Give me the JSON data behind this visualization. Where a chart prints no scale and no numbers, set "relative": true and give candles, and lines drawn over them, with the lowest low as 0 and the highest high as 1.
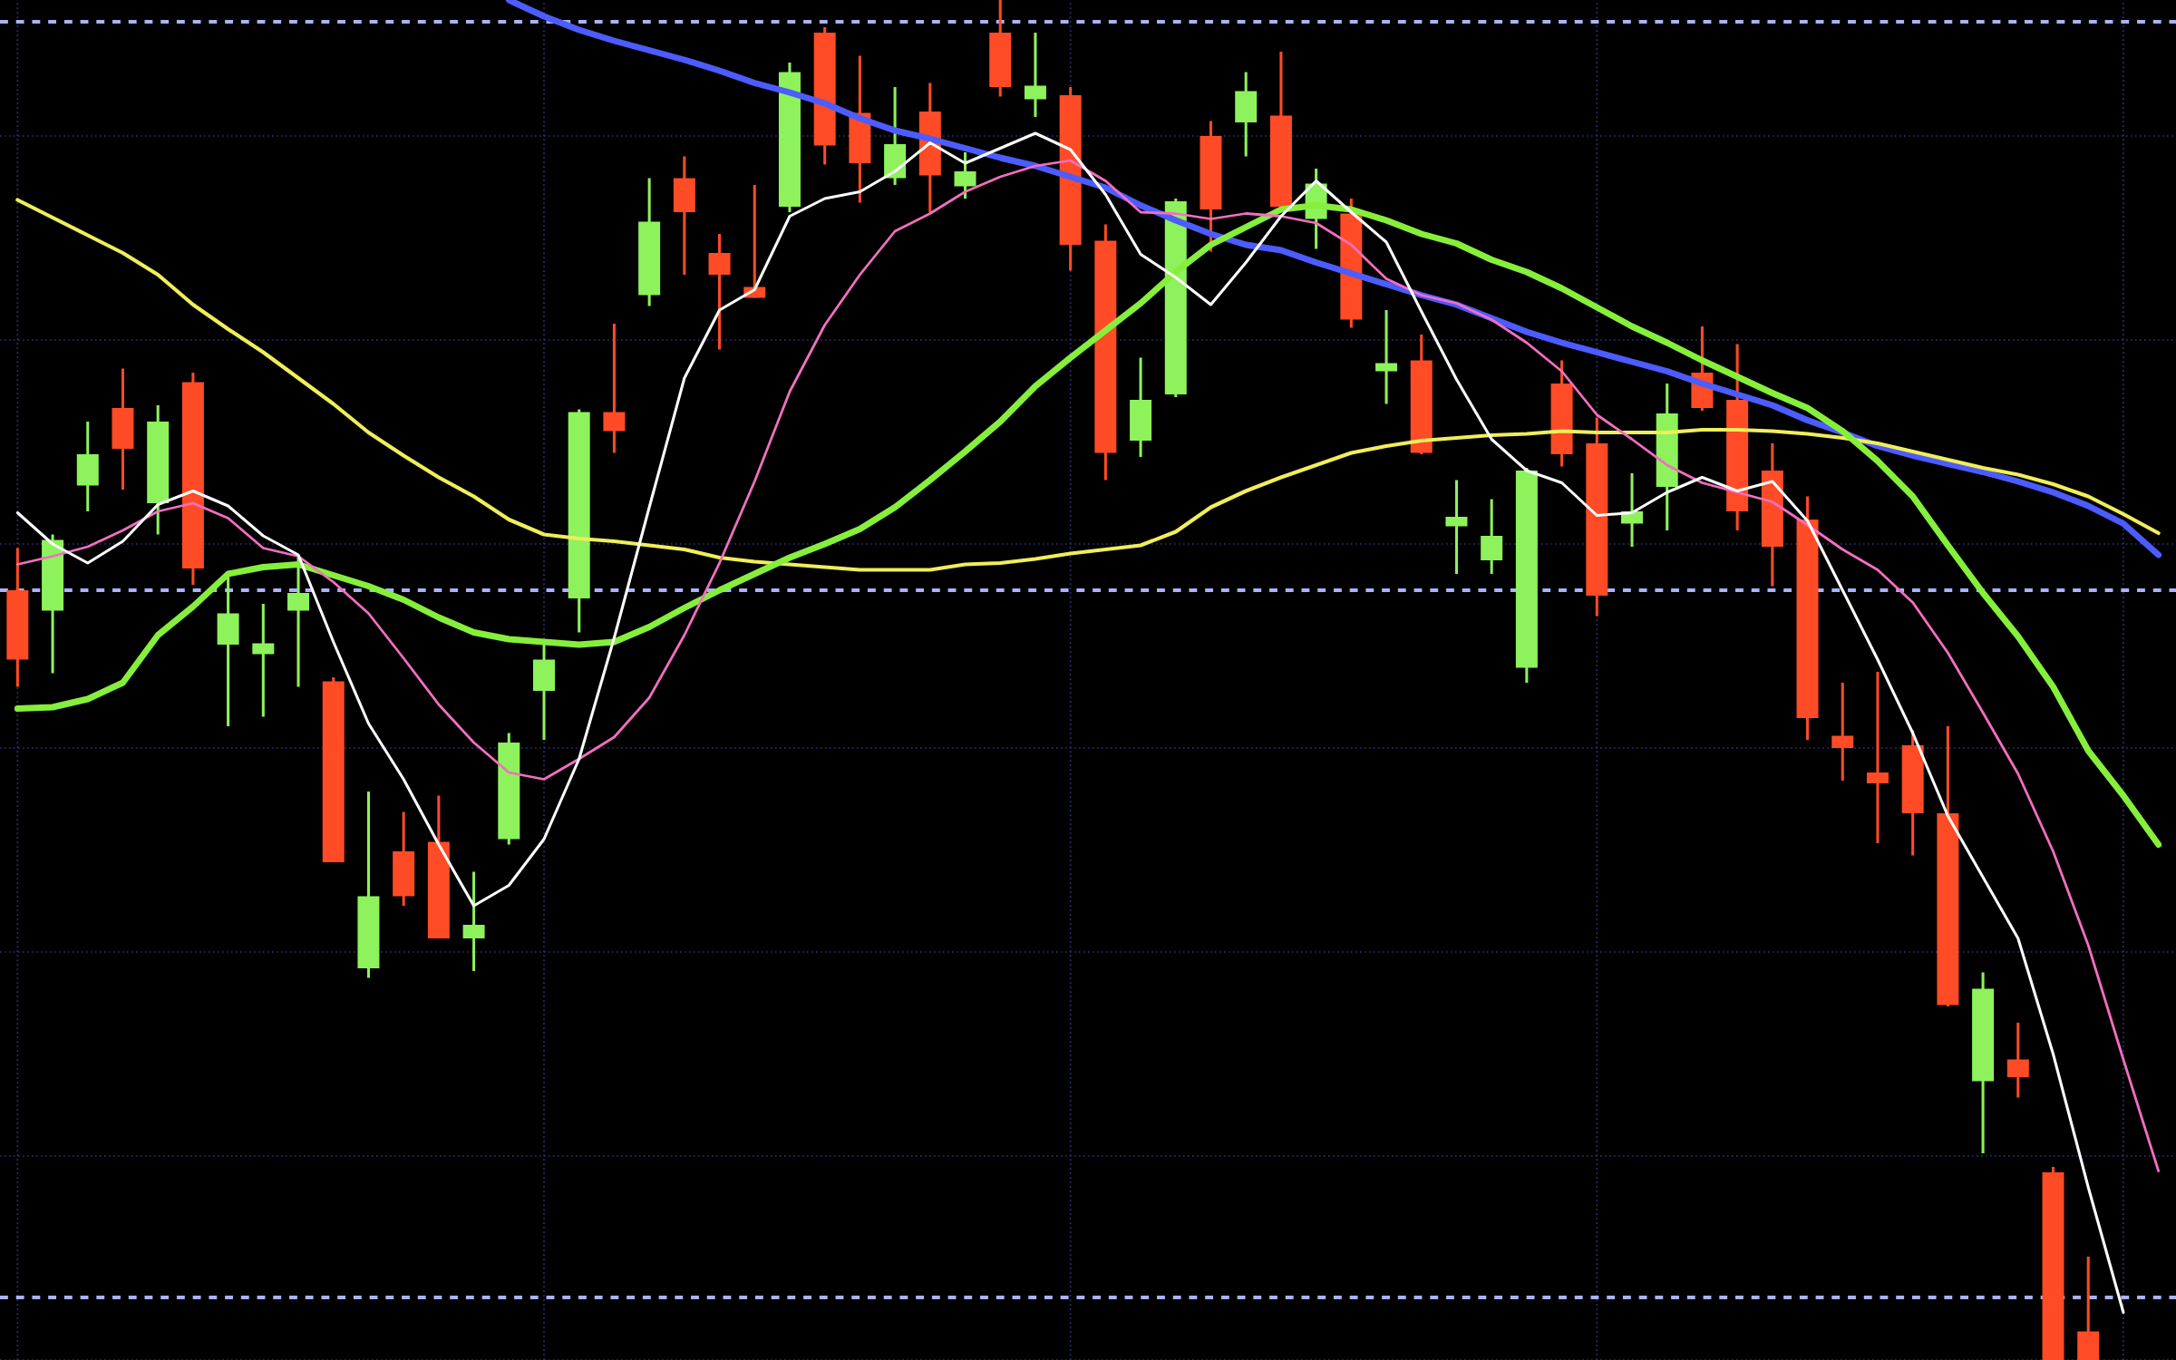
{
  "chart_data": {
    "type": "candlestick",
    "relative": true,
    "grid": true,
    "categories": [
      null,
      null,
      null,
      null,
      null,
      null,
      null,
      null,
      null,
      null,
      null,
      null,
      null,
      null,
      null,
      null,
      null,
      null,
      null,
      null,
      null,
      null,
      null,
      null,
      null,
      null,
      null,
      null,
      null,
      null,
      null,
      null,
      null,
      null,
      null,
      null,
      null,
      null,
      null,
      null,
      null,
      null,
      null,
      null,
      null,
      null,
      null,
      null,
      null,
      null,
      null,
      null,
      null,
      null,
      null,
      null,
      null,
      null,
      null,
      null,
      null,
      null
    ],
    "ohlc": [
      [
        0.566,
        0.597,
        0.495,
        0.515
      ],
      [
        0.551,
        0.607,
        0.505,
        0.603
      ],
      [
        0.643,
        0.69,
        0.624,
        0.666
      ],
      [
        0.7,
        0.729,
        0.64,
        0.67
      ],
      [
        0.63,
        0.702,
        0.607,
        0.69
      ],
      [
        0.719,
        0.726,
        0.57,
        0.582
      ],
      [
        0.526,
        0.58,
        0.466,
        0.549
      ],
      [
        0.519,
        0.556,
        0.473,
        0.527
      ],
      [
        0.551,
        0.591,
        0.495,
        0.564
      ],
      [
        0.499,
        0.502,
        0.366,
        0.366
      ],
      [
        0.288,
        0.418,
        0.281,
        0.341
      ],
      [
        0.374,
        0.403,
        0.334,
        0.341
      ],
      [
        0.381,
        0.415,
        0.31,
        0.31
      ],
      [
        0.31,
        0.359,
        0.286,
        0.32
      ],
      [
        0.383,
        0.461,
        0.379,
        0.454
      ],
      [
        0.492,
        0.526,
        0.456,
        0.515
      ],
      [
        0.56,
        0.699,
        0.535,
        0.697
      ],
      [
        0.697,
        0.762,
        0.667,
        0.683
      ],
      [
        0.783,
        0.869,
        0.775,
        0.837
      ],
      [
        0.869,
        0.885,
        0.798,
        0.844
      ],
      [
        0.814,
        0.828,
        0.743,
        0.798
      ],
      [
        0.789,
        0.864,
        0.781,
        0.781
      ],
      [
        0.848,
        0.954,
        0.844,
        0.947
      ],
      [
        0.976,
        0.98,
        0.879,
        0.893
      ],
      [
        0.917,
        0.959,
        0.851,
        0.88
      ],
      [
        0.869,
        0.936,
        0.864,
        0.894
      ],
      [
        0.918,
        0.939,
        0.844,
        0.871
      ],
      [
        0.863,
        0.888,
        0.854,
        0.874
      ],
      [
        0.976,
        1.0,
        0.929,
        0.936
      ],
      [
        0.927,
        0.976,
        0.914,
        0.937
      ],
      [
        0.93,
        0.936,
        0.801,
        0.82
      ],
      [
        0.823,
        0.835,
        0.647,
        0.667
      ],
      [
        0.676,
        0.737,
        0.664,
        0.706
      ],
      [
        0.71,
        0.854,
        0.708,
        0.852
      ],
      [
        0.9,
        0.911,
        0.815,
        0.846
      ],
      [
        0.91,
        0.947,
        0.885,
        0.933
      ],
      [
        0.915,
        0.962,
        0.846,
        0.848
      ],
      [
        0.839,
        0.876,
        0.817,
        0.865
      ],
      [
        0.843,
        0.854,
        0.759,
        0.765
      ],
      [
        0.727,
        0.772,
        0.703,
        0.733
      ],
      [
        0.735,
        0.754,
        0.666,
        0.667
      ],
      [
        0.613,
        0.647,
        0.578,
        0.62
      ],
      [
        0.588,
        0.633,
        0.578,
        0.606
      ],
      [
        0.509,
        0.656,
        0.498,
        0.654
      ],
      [
        0.718,
        0.735,
        0.657,
        0.666
      ],
      [
        0.674,
        0.693,
        0.547,
        0.562
      ],
      [
        0.615,
        0.652,
        0.598,
        0.624
      ],
      [
        0.642,
        0.718,
        0.61,
        0.696
      ],
      [
        0.726,
        0.76,
        0.698,
        0.7
      ],
      [
        0.706,
        0.747,
        0.61,
        0.624
      ],
      [
        0.654,
        0.674,
        0.569,
        0.598
      ],
      [
        0.618,
        0.635,
        0.456,
        0.472
      ],
      [
        0.459,
        0.498,
        0.426,
        0.45
      ],
      [
        0.432,
        0.506,
        0.38,
        0.424
      ],
      [
        0.452,
        0.463,
        0.371,
        0.402
      ],
      [
        0.402,
        0.466,
        0.26,
        0.261
      ],
      [
        0.205,
        0.285,
        0.152,
        0.273
      ],
      [
        0.221,
        0.248,
        0.193,
        0.208
      ],
      [
        0.138,
        0.142,
        0,
        0
      ],
      [
        0.021,
        0.076,
        0,
        0
      ],
      null,
      null
    ],
    "colors": [
      "#ff4b26",
      "#8df25c",
      "#8df25c",
      "#ff4b26",
      "#8df25c",
      "#ff4b26",
      "#8df25c",
      "#8df25c",
      "#8df25c",
      "#ff4b26",
      "#8df25c",
      "#ff4b26",
      "#ff4b26",
      "#8df25c",
      "#8df25c",
      "#8df25c",
      "#8df25c",
      "#ff4b26",
      "#8df25c",
      "#ff4b26",
      "#ff4b26",
      "#ff4b26",
      "#8df25c",
      "#ff4b26",
      "#ff4b26",
      "#8df25c",
      "#ff4b26",
      "#8df25c",
      "#ff4b26",
      "#8df25c",
      "#ff4b26",
      "#ff4b26",
      "#8df25c",
      "#8df25c",
      "#ff4b26",
      "#8df25c",
      "#ff4b26",
      "#8df25c",
      "#ff4b26",
      "#8df25c",
      "#ff4b26",
      "#8df25c",
      "#8df25c",
      "#8df25c",
      "#ff4b26",
      "#ff4b26",
      "#8df25c",
      "#8df25c",
      "#ff4b26",
      "#ff4b26",
      "#ff4b26",
      "#ff4b26",
      "#ff4b26",
      "#ff4b26",
      "#ff4b26",
      "#ff4b26",
      "#8df25c",
      "#ff4b26",
      "#ff4b26",
      "#ff4b26",
      null,
      null
    ],
    "series": [
      {
        "type": "line",
        "color": "#4c5cff",
        "values": [
          null,
          null,
          null,
          null,
          null,
          null,
          null,
          null,
          null,
          null,
          null,
          null,
          null,
          null,
          1.0,
          0.988,
          0.978,
          0.97,
          0.963,
          0.956,
          0.948,
          0.939,
          0.932,
          0.924,
          0.913,
          0.904,
          0.898,
          0.891,
          0.884,
          0.878,
          0.87,
          0.862,
          0.849,
          0.838,
          0.828,
          0.82,
          0.816,
          0.807,
          0.799,
          0.791,
          0.783,
          0.776,
          0.766,
          0.756,
          0.748,
          0.741,
          0.734,
          0.727,
          0.718,
          0.71,
          0.702,
          0.691,
          0.682,
          0.672,
          0.665,
          0.659,
          0.653,
          0.646,
          0.638,
          0.628,
          0.615,
          0.592
        ]
      },
      {
        "type": "line",
        "color": "#f0ee5a",
        "values": [
          0.853,
          0.84,
          0.827,
          0.814,
          0.798,
          0.776,
          0.758,
          0.741,
          0.722,
          0.703,
          0.682,
          0.665,
          0.649,
          0.635,
          0.618,
          0.607,
          0.604,
          0.602,
          0.599,
          0.596,
          0.59,
          0.587,
          0.585,
          0.583,
          0.581,
          0.581,
          0.581,
          0.585,
          0.586,
          0.589,
          0.593,
          0.596,
          0.599,
          0.609,
          0.627,
          0.639,
          0.649,
          0.658,
          0.667,
          0.672,
          0.676,
          0.678,
          0.68,
          0.681,
          0.683,
          0.682,
          0.682,
          0.682,
          0.684,
          0.684,
          0.683,
          0.681,
          0.678,
          0.674,
          0.668,
          0.662,
          0.656,
          0.651,
          0.644,
          0.635,
          0.622,
          0.608
        ]
      },
      {
        "type": "line",
        "color": "#86ef3c",
        "values": [
          0.479,
          0.48,
          0.486,
          0.498,
          0.533,
          0.554,
          0.578,
          0.583,
          0.585,
          0.577,
          0.569,
          0.559,
          0.546,
          0.535,
          0.53,
          0.528,
          0.526,
          0.528,
          0.539,
          0.553,
          0.566,
          0.578,
          0.59,
          0.6,
          0.611,
          0.627,
          0.647,
          0.668,
          0.69,
          0.716,
          0.737,
          0.757,
          0.777,
          0.8,
          0.82,
          0.833,
          0.846,
          0.849,
          0.846,
          0.838,
          0.828,
          0.821,
          0.809,
          0.8,
          0.788,
          0.774,
          0.76,
          0.748,
          0.735,
          0.723,
          0.711,
          0.7,
          0.683,
          0.661,
          0.635,
          0.599,
          0.564,
          0.532,
          0.495,
          0.448,
          0.415,
          0.379
        ]
      },
      {
        "type": "line",
        "color": "#f36fc0",
        "values": [
          0.585,
          0.591,
          0.598,
          0.61,
          0.624,
          0.63,
          0.619,
          0.597,
          0.591,
          0.572,
          0.549,
          0.516,
          0.482,
          0.454,
          0.432,
          0.427,
          0.442,
          0.458,
          0.487,
          0.533,
          0.586,
          0.646,
          0.712,
          0.761,
          0.798,
          0.83,
          0.843,
          0.859,
          0.87,
          0.878,
          0.882,
          0.867,
          0.844,
          0.843,
          0.839,
          0.843,
          0.841,
          0.836,
          0.82,
          0.795,
          0.783,
          0.777,
          0.765,
          0.748,
          0.727,
          0.695,
          0.677,
          0.658,
          0.645,
          0.638,
          0.631,
          0.614,
          0.596,
          0.581,
          0.557,
          0.52,
          0.476,
          0.431,
          0.374,
          0.305,
          0.221,
          0.139
        ]
      },
      {
        "type": "line",
        "color": "#ffffff",
        "values": [
          0.623,
          0.6,
          0.586,
          0.602,
          0.629,
          0.639,
          0.628,
          0.606,
          0.592,
          0.528,
          0.468,
          0.427,
          0.379,
          0.334,
          0.349,
          0.383,
          0.442,
          0.531,
          0.627,
          0.722,
          0.772,
          0.787,
          0.841,
          0.854,
          0.859,
          0.874,
          0.895,
          0.88,
          0.891,
          0.902,
          0.89,
          0.857,
          0.813,
          0.796,
          0.776,
          0.807,
          0.841,
          0.867,
          0.844,
          0.822,
          0.771,
          0.721,
          0.677,
          0.654,
          0.645,
          0.621,
          0.623,
          0.638,
          0.649,
          0.639,
          0.646,
          0.617,
          0.566,
          0.515,
          0.461,
          0.4,
          0.355,
          0.31,
          0.225,
          0.127,
          0.035,
          null
        ]
      }
    ],
    "ref_lines": [
      {
        "axis": "y",
        "value": 0.984,
        "color": "#aab2ff",
        "line_style": "dashed"
      },
      {
        "axis": "y",
        "value": 0.566,
        "color": "#aab2ff",
        "line_style": "dashed"
      },
      {
        "axis": "y",
        "value": 0.046,
        "color": "#aab2ff",
        "line_style": "dashed"
      }
    ]
  }
}
